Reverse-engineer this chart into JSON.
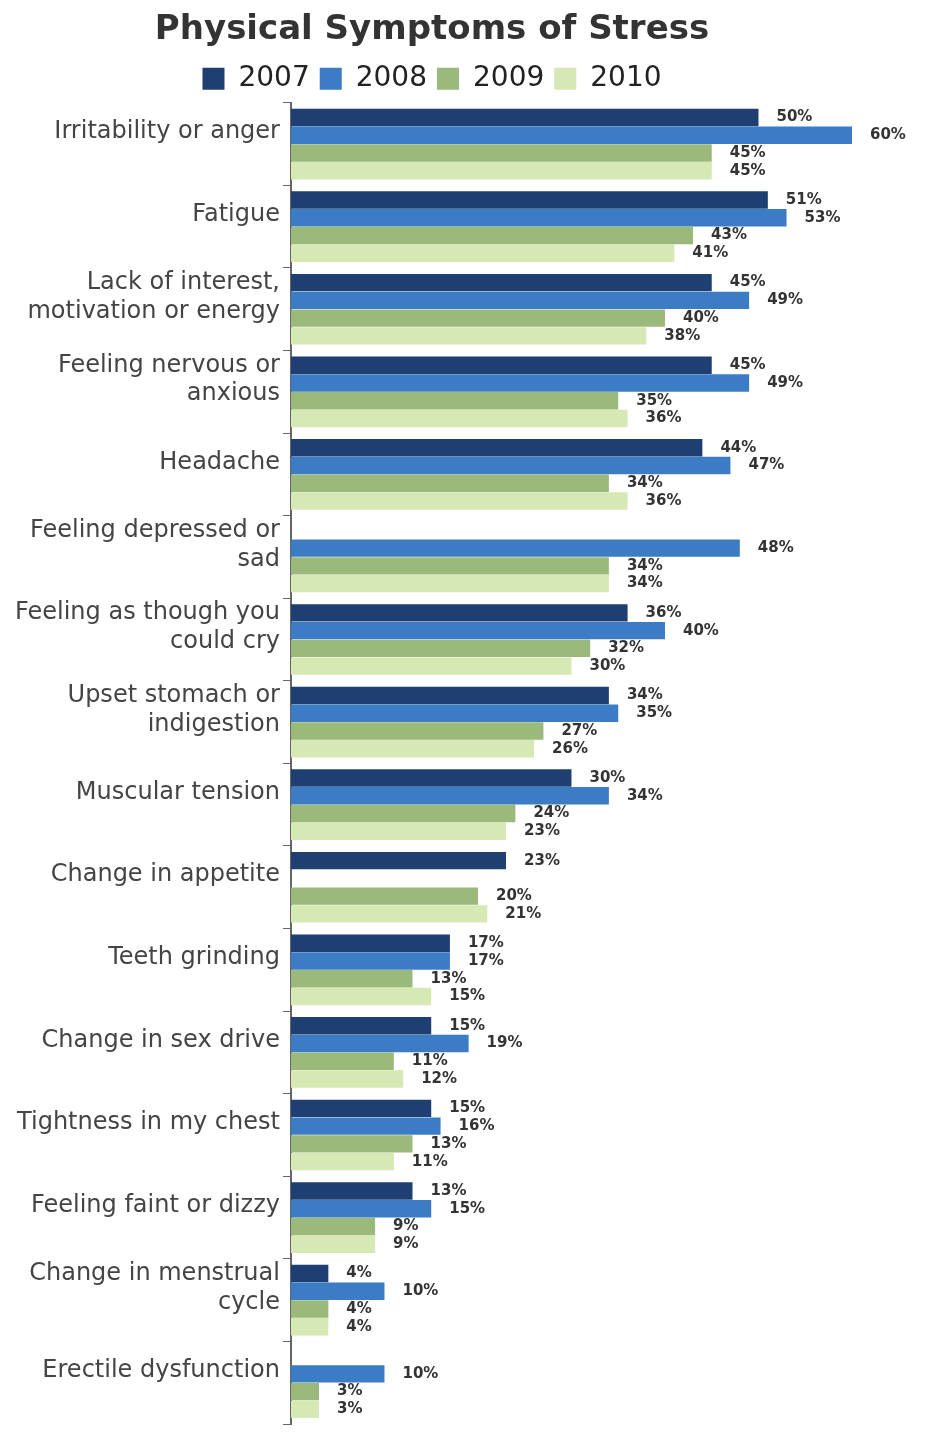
{
  "chart_data": {
    "type": "bar",
    "orientation": "horizontal",
    "title": "Physical Symptoms of Stress",
    "legend": "top",
    "categories": [
      "Irritability or anger",
      "Fatigue",
      "Lack of interest, motivation or energy",
      "Feeling nervous or anxious",
      "Headache",
      "Feeling depressed or sad",
      "Feeling as though you could cry",
      "Upset stomach or indigestion",
      "Muscular tension",
      "Change in appetite",
      "Teeth grinding",
      "Change in sex drive",
      "Tightness in my chest",
      "Feeling faint or dizzy",
      "Change in menstrual cycle",
      "Erectile dysfunction"
    ],
    "series": [
      {
        "name": "2007",
        "color": "#1f3f73",
        "values": [
          50,
          51,
          45,
          45,
          44,
          null,
          36,
          34,
          30,
          23,
          17,
          15,
          15,
          13,
          4,
          null
        ],
        "value_labels": [
          "50%",
          "51%",
          "45%",
          "45%",
          "44%",
          null,
          "36%",
          "34%",
          "30%",
          "23%",
          "17%",
          "15%",
          "15%",
          "13%",
          "4%",
          null
        ]
      },
      {
        "name": "2008",
        "color": "#3b7cc4",
        "values": [
          60,
          53,
          49,
          49,
          47,
          48,
          40,
          35,
          34,
          null,
          17,
          19,
          16,
          15,
          10,
          10
        ],
        "value_labels": [
          "60%",
          "53%",
          "49%",
          "49%",
          "47%",
          "48%",
          "40%",
          "35%",
          "34%",
          null,
          "17%",
          "19%",
          "16%",
          "15%",
          "10%",
          "10%"
        ]
      },
      {
        "name": "2009",
        "color": "#9bb97a",
        "values": [
          45,
          43,
          40,
          35,
          34,
          34,
          32,
          27,
          24,
          20,
          13,
          11,
          13,
          9,
          4,
          3
        ],
        "value_labels": [
          "45%",
          "43%",
          "40%",
          "35%",
          "34%",
          "34%",
          "32%",
          "27%",
          "24%",
          "20%",
          "13%",
          "11%",
          "13%",
          "9%",
          "4%",
          "3%"
        ]
      },
      {
        "name": "2010",
        "color": "#d6e8b4",
        "values": [
          45,
          41,
          38,
          36,
          36,
          34,
          30,
          26,
          23,
          21,
          15,
          12,
          11,
          9,
          4,
          3
        ],
        "value_labels": [
          "45%",
          "41%",
          "38%",
          "36%",
          "36%",
          "34%",
          "30%",
          "26%",
          "23%",
          "21%",
          "15%",
          "12%",
          "11%",
          "9%",
          "4%",
          "3%"
        ]
      }
    ]
  }
}
